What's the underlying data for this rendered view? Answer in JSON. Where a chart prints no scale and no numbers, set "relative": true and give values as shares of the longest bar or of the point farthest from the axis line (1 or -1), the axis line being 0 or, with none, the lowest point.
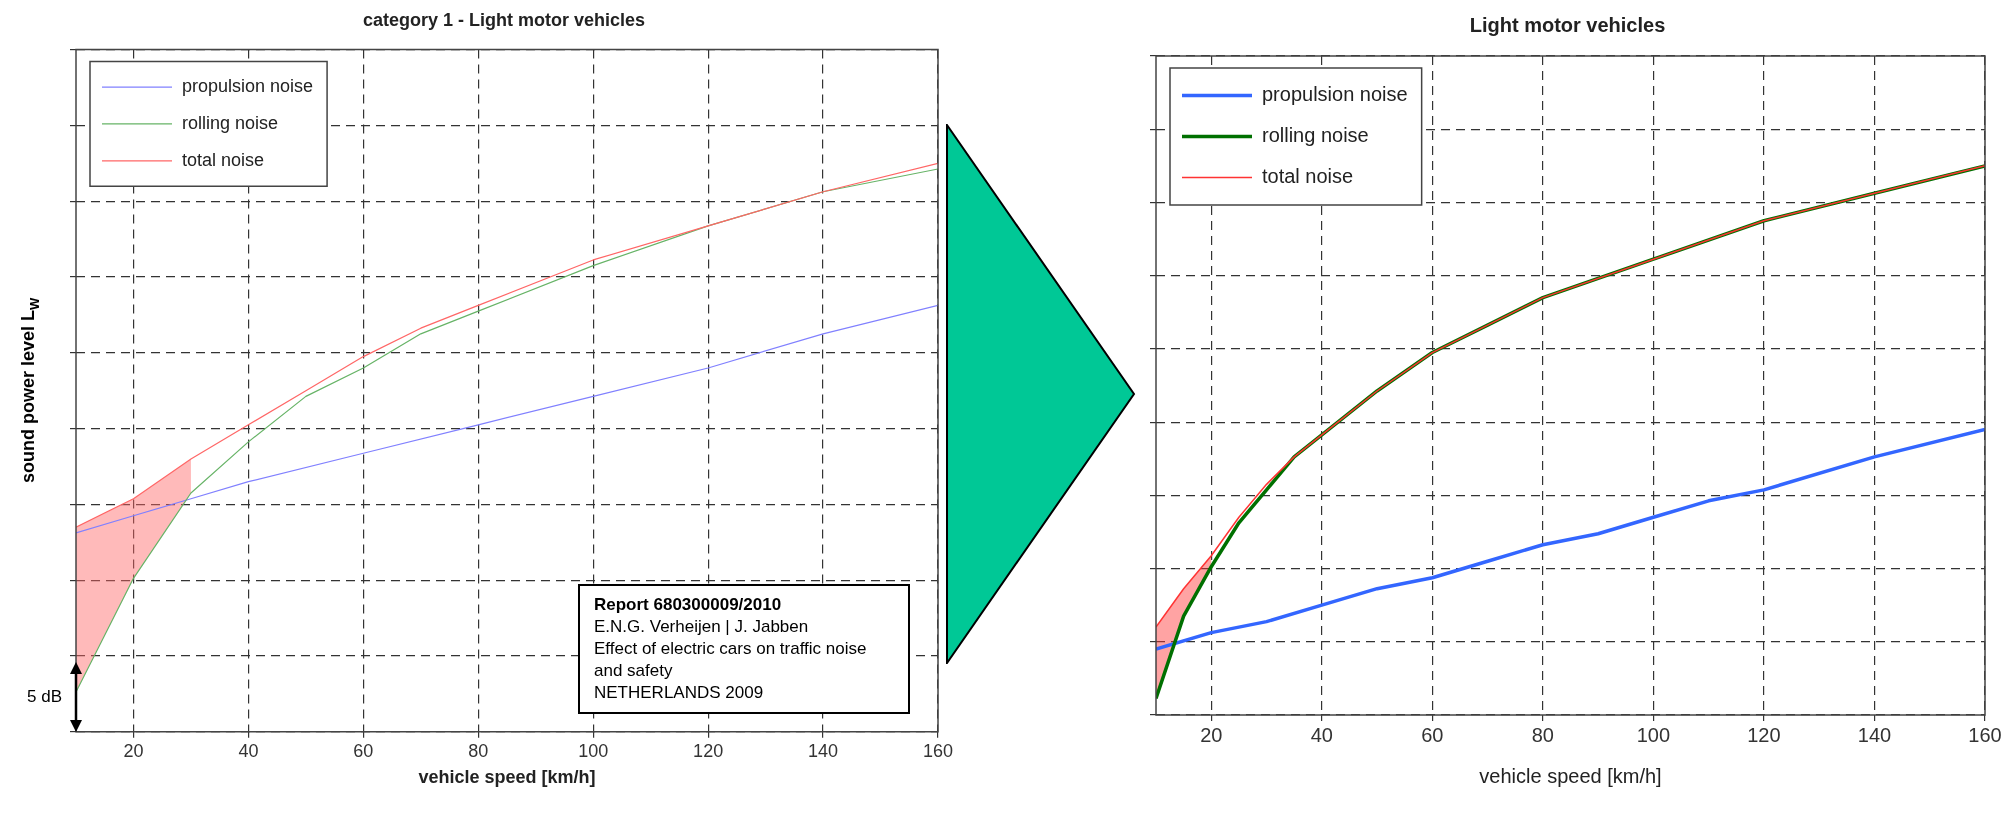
{
  "chart_data": [
    {
      "type": "line",
      "title": "category 1 - Light motor vehicles",
      "xlabel": "vehicle speed [km/h]",
      "ylabel": "sound power level L$_{W}$",
      "relative": true,
      "xlim": [
        10,
        160
      ],
      "xticks": [
        20,
        40,
        60,
        80,
        100,
        120,
        140,
        160
      ],
      "grid": true,
      "legend": "top left",
      "line_style": "solid",
      "annotations": [
        "Report 680300009/2010",
        "E.N.G. Verheijen | J. Jabben",
        "Effect of electric cars on traffic noise and safety",
        "NETHERLANDS 2009",
        {
          "text": "5 dB",
          "x": 10
        }
      ],
      "series": [
        {
          "name": "propulsion noise",
          "color": "#8080ff",
          "x": [
            10,
            20,
            30,
            40,
            60,
            80,
            100,
            120,
            140,
            160
          ],
          "values": [
            0.35,
            0.38,
            0.41,
            0.44,
            0.49,
            0.54,
            0.59,
            0.64,
            0.7,
            0.75
          ]
        },
        {
          "name": "rolling noise",
          "color": "#66b366",
          "x": [
            10,
            20,
            30,
            40,
            50,
            60,
            70,
            80,
            100,
            120,
            140,
            160
          ],
          "values": [
            0.07,
            0.27,
            0.42,
            0.51,
            0.59,
            0.64,
            0.7,
            0.74,
            0.82,
            0.89,
            0.95,
            0.99
          ]
        },
        {
          "name": "total noise",
          "color": "#ff6666",
          "x": [
            10,
            20,
            30,
            40,
            50,
            60,
            70,
            80,
            100,
            120,
            140,
            160
          ],
          "values": [
            0.36,
            0.41,
            0.48,
            0.54,
            0.6,
            0.66,
            0.71,
            0.75,
            0.83,
            0.89,
            0.95,
            1
          ],
          "lower": [
            0.07,
            0.27,
            0.42,
            null,
            null,
            null,
            null,
            null,
            null,
            null,
            null,
            null
          ],
          "upper": [
            0.36,
            0.41,
            0.48,
            null,
            null,
            null,
            null,
            null,
            null,
            null,
            null,
            null
          ]
        }
      ]
    },
    {
      "type": "line",
      "title": "Light motor vehicles",
      "xlabel": "vehicle speed [km/h]",
      "relative": true,
      "xlim": [
        10,
        160
      ],
      "xticks": [
        20,
        40,
        60,
        80,
        100,
        120,
        140,
        160
      ],
      "grid": true,
      "legend": "top left",
      "line_style": "solid",
      "series": [
        {
          "name": "propulsion noise",
          "color": "#3366ff",
          "x": [
            10,
            20,
            30,
            40,
            50,
            60,
            70,
            80,
            90,
            100,
            110,
            120,
            140,
            160
          ],
          "values": [
            0.12,
            0.15,
            0.17,
            0.2,
            0.23,
            0.25,
            0.28,
            0.31,
            0.33,
            0.36,
            0.39,
            0.41,
            0.47,
            0.52
          ]
        },
        {
          "name": "rolling noise",
          "color": "#007000",
          "x": [
            10,
            15,
            20,
            25,
            30,
            35,
            40,
            50,
            60,
            70,
            80,
            100,
            120,
            140,
            160
          ],
          "values": [
            0.03,
            0.18,
            0.27,
            0.35,
            0.41,
            0.47,
            0.51,
            0.59,
            0.66,
            0.71,
            0.76,
            0.83,
            0.9,
            0.95,
            1
          ]
        },
        {
          "name": "total noise",
          "color": "#ff3333",
          "x": [
            10,
            15,
            20,
            25,
            30,
            35,
            40,
            50,
            60,
            70,
            80,
            100,
            120,
            140,
            160
          ],
          "values": [
            0.16,
            0.23,
            0.29,
            0.36,
            0.42,
            0.47,
            0.51,
            0.59,
            0.66,
            0.71,
            0.76,
            0.83,
            0.9,
            0.95,
            1
          ],
          "lower": [
            0.03,
            0.18,
            0.27,
            null,
            null,
            null,
            null,
            null,
            null,
            null,
            null,
            null,
            null,
            null,
            null
          ],
          "upper": [
            0.16,
            0.23,
            0.29,
            null,
            null,
            null,
            null,
            null,
            null,
            null,
            null,
            null,
            null,
            null,
            null
          ]
        }
      ]
    }
  ]
}
